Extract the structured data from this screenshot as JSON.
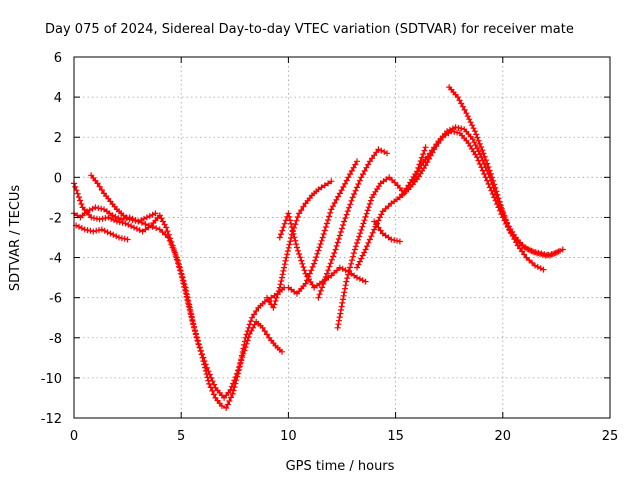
{
  "chart_data": {
    "type": "scatter",
    "title": "Day 075 of 2024, Sidereal Day-to-day VTEC variation (SDTVAR) for receiver mate",
    "xlabel": "GPS time / hours",
    "ylabel": "SDTVAR / TECUs",
    "xlim": [
      0,
      25
    ],
    "ylim": [
      -12,
      6
    ],
    "x_ticks": [
      "0",
      "5",
      "10",
      "15",
      "20",
      "25"
    ],
    "y_ticks": [
      "6",
      "4",
      "2",
      "0",
      "-2",
      "-4",
      "-6",
      "-8",
      "-10",
      "-12"
    ],
    "grid": true,
    "marker": "plus",
    "color": "#ff0000",
    "series": [
      {
        "x": [
          0.0,
          0.3,
          0.6,
          1.0,
          1.4,
          1.8,
          2.2,
          2.6,
          3.0,
          3.5,
          4.0,
          4.4,
          4.8,
          5.2,
          5.6,
          6.0,
          6.3,
          6.6,
          6.9,
          7.1,
          7.4,
          7.7,
          8.0,
          8.3,
          8.6,
          8.9,
          9.2,
          9.5,
          9.8
        ],
        "y": [
          -1.8,
          -2.0,
          -1.7,
          -1.5,
          -1.6,
          -1.9,
          -2.1,
          -2.0,
          -2.2,
          -2.4,
          -2.6,
          -3.0,
          -4.0,
          -5.5,
          -7.5,
          -9.0,
          -10.3,
          -11.0,
          -11.4,
          -11.5,
          -10.8,
          -9.6,
          -8.0,
          -7.0,
          -6.5,
          -6.2,
          -6.0,
          -5.8,
          -5.5
        ]
      },
      {
        "x": [
          0.0,
          0.4,
          0.8,
          1.2,
          1.6,
          2.0,
          2.4,
          2.8,
          3.2,
          3.6,
          4.0,
          4.3,
          4.6,
          5.0,
          5.4,
          5.8,
          6.2,
          6.6,
          7.0,
          7.3,
          7.6,
          7.9,
          8.2,
          8.5,
          8.8,
          9.1,
          9.4,
          9.7
        ],
        "y": [
          -0.3,
          -1.5,
          -2.0,
          -2.1,
          -2.0,
          -2.2,
          -2.3,
          -2.5,
          -2.7,
          -2.4,
          -1.9,
          -2.5,
          -3.4,
          -4.8,
          -6.6,
          -8.3,
          -9.5,
          -10.5,
          -11.0,
          -10.6,
          -9.8,
          -8.8,
          -7.8,
          -7.2,
          -7.5,
          -8.0,
          -8.4,
          -8.7
        ]
      },
      {
        "x": [
          0.8,
          1.1,
          1.4,
          1.7,
          2.0,
          2.3,
          2.6,
          3.0,
          3.4,
          3.8
        ],
        "y": [
          0.1,
          -0.3,
          -0.8,
          -1.2,
          -1.6,
          -1.9,
          -2.1,
          -2.2,
          -2.0,
          -1.8
        ]
      },
      {
        "x": [
          0.1,
          0.5,
          0.9,
          1.3,
          1.7,
          2.1,
          2.5
        ],
        "y": [
          -2.4,
          -2.6,
          -2.7,
          -2.6,
          -2.8,
          -3.0,
          -3.1
        ]
      },
      {
        "x": [
          9.0,
          9.3,
          9.6,
          9.9,
          10.2,
          10.5,
          10.8,
          11.1,
          11.4,
          11.7,
          12.0
        ],
        "y": [
          -6.0,
          -6.5,
          -5.5,
          -4.0,
          -2.7,
          -1.8,
          -1.3,
          -0.9,
          -0.6,
          -0.4,
          -0.2
        ]
      },
      {
        "x": [
          9.6,
          10.0,
          10.4,
          10.8,
          11.2,
          11.6,
          12.0,
          12.4,
          12.8,
          13.2,
          13.6
        ],
        "y": [
          -3.0,
          -1.8,
          -3.5,
          -4.8,
          -5.5,
          -5.2,
          -4.9,
          -4.5,
          -4.7,
          -5.0,
          -5.2
        ]
      },
      {
        "x": [
          10.0,
          10.4,
          10.8,
          11.2,
          11.6,
          12.0,
          12.4,
          12.8,
          13.2
        ],
        "y": [
          -5.5,
          -5.8,
          -5.3,
          -4.3,
          -3.0,
          -1.6,
          -0.8,
          0.0,
          0.8
        ]
      },
      {
        "x": [
          11.4,
          11.8,
          12.2,
          12.6,
          13.0,
          13.4,
          13.8,
          14.2,
          14.6
        ],
        "y": [
          -6.0,
          -4.8,
          -3.6,
          -2.2,
          -1.0,
          0.0,
          0.8,
          1.4,
          1.2
        ]
      },
      {
        "x": [
          12.3,
          12.7,
          13.1,
          13.5,
          13.9,
          14.3,
          14.7,
          15.1,
          15.4
        ],
        "y": [
          -7.5,
          -5.2,
          -3.6,
          -2.3,
          -1.0,
          -0.3,
          0.0,
          -0.4,
          -0.8
        ]
      },
      {
        "x": [
          13.2,
          13.6,
          14.0,
          14.4,
          14.8,
          15.2,
          15.6,
          16.0,
          16.4
        ],
        "y": [
          -4.5,
          -3.6,
          -2.6,
          -1.7,
          -1.3,
          -1.0,
          -0.4,
          0.3,
          1.5
        ]
      },
      {
        "x": [
          14.0,
          14.4,
          14.8,
          15.2
        ],
        "y": [
          -2.2,
          -2.8,
          -3.1,
          -3.2
        ]
      },
      {
        "x": [
          15.2,
          15.6,
          16.0,
          16.4,
          16.8,
          17.2,
          17.6,
          18.0,
          18.4,
          18.8,
          19.2,
          19.6,
          20.0,
          20.4,
          20.8,
          21.2,
          21.6,
          22.0,
          22.4,
          22.8
        ],
        "y": [
          -1.0,
          -0.6,
          -0.1,
          0.6,
          1.4,
          2.0,
          2.3,
          2.2,
          1.7,
          1.0,
          0.0,
          -1.0,
          -2.0,
          -2.8,
          -3.3,
          -3.6,
          -3.8,
          -3.9,
          -3.8,
          -3.6
        ]
      },
      {
        "x": [
          15.8,
          16.2,
          16.6,
          17.0,
          17.4,
          17.8,
          18.2,
          18.6,
          19.0,
          19.4,
          19.8,
          20.2,
          20.6,
          21.0,
          21.4,
          21.8,
          22.2,
          22.6
        ],
        "y": [
          -0.2,
          0.6,
          1.2,
          1.8,
          2.3,
          2.5,
          2.4,
          1.9,
          1.0,
          0.0,
          -1.2,
          -2.3,
          -3.0,
          -3.5,
          -3.7,
          -3.8,
          -3.9,
          -3.7
        ]
      },
      {
        "x": [
          17.5,
          17.9,
          18.3,
          18.7,
          19.1,
          19.5,
          19.9,
          20.3,
          20.7,
          21.1,
          21.5,
          21.9
        ],
        "y": [
          4.5,
          4.0,
          3.2,
          2.3,
          1.2,
          0.0,
          -1.4,
          -2.6,
          -3.4,
          -4.0,
          -4.4,
          -4.6
        ]
      }
    ]
  }
}
